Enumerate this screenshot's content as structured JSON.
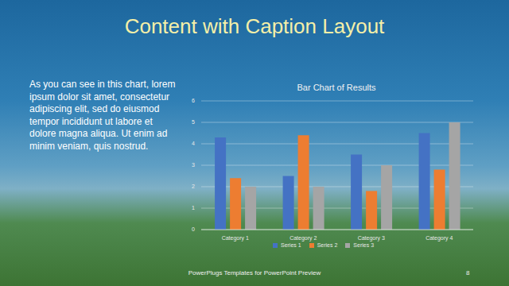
{
  "title": "Content with Caption Layout",
  "caption": "As you can see in this chart, lorem ipsum dolor sit amet, consectetur adipiscing elit, sed do eiusmod tempor incididunt ut labore et dolore magna aliqua. Ut enim ad minim veniam, quis nostrud.",
  "footer": "PowerPlugs Templates for PowerPoint Preview",
  "page": "8",
  "chart_data": {
    "type": "bar",
    "title": "Bar Chart of Results",
    "categories": [
      "Category 1",
      "Category 2",
      "Category 3",
      "Category 4"
    ],
    "series": [
      {
        "name": "Series 1",
        "color": "#4472c4",
        "values": [
          4.3,
          2.5,
          3.5,
          4.5
        ]
      },
      {
        "name": "Series 2",
        "color": "#ed7d31",
        "values": [
          2.4,
          4.4,
          1.8,
          2.8
        ]
      },
      {
        "name": "Series 3",
        "color": "#a5a5a5",
        "values": [
          2,
          2,
          3,
          5
        ]
      }
    ],
    "ylim": [
      0,
      6
    ],
    "yticks": [
      0,
      1,
      2,
      3,
      4,
      5,
      6
    ],
    "grid": true,
    "legend": "bottom"
  }
}
